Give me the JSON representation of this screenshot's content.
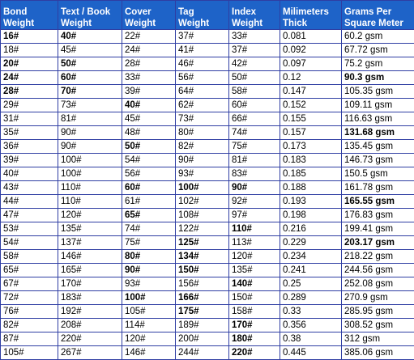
{
  "table": {
    "headers": [
      [
        "Bond",
        "Weight"
      ],
      [
        "Text / Book",
        "Weight"
      ],
      [
        "Cover",
        "Weight"
      ],
      [
        "Tag",
        "Weight"
      ],
      [
        "Index",
        "Weight"
      ],
      [
        "Milimeters",
        "Thick"
      ],
      [
        "Grams Per",
        "Square Meter"
      ]
    ],
    "rows": [
      {
        "cells": [
          "16#",
          "40#",
          "22#",
          "37#",
          "33#",
          "0.081",
          "60.2 gsm"
        ],
        "bold": [
          0,
          1
        ]
      },
      {
        "cells": [
          "18#",
          "45#",
          "24#",
          "41#",
          "37#",
          "0.092",
          "67.72 gsm"
        ],
        "bold": []
      },
      {
        "cells": [
          "20#",
          "50#",
          "28#",
          "46#",
          "42#",
          "0.097",
          "75.2 gsm"
        ],
        "bold": [
          0,
          1
        ]
      },
      {
        "cells": [
          "24#",
          "60#",
          "33#",
          "56#",
          "50#",
          "0.12",
          "90.3 gsm"
        ],
        "bold": [
          0,
          1,
          6
        ]
      },
      {
        "cells": [
          "28#",
          "70#",
          "39#",
          "64#",
          "58#",
          "0.147",
          "105.35 gsm"
        ],
        "bold": [
          0,
          1
        ]
      },
      {
        "cells": [
          "29#",
          "73#",
          "40#",
          "62#",
          "60#",
          "0.152",
          "109.11 gsm"
        ],
        "bold": [
          2
        ]
      },
      {
        "cells": [
          "31#",
          "81#",
          "45#",
          "73#",
          "66#",
          "0.155",
          "116.63 gsm"
        ],
        "bold": []
      },
      {
        "cells": [
          "35#",
          "90#",
          "48#",
          "80#",
          "74#",
          "0.157",
          "131.68 gsm"
        ],
        "bold": [
          6
        ]
      },
      {
        "cells": [
          "36#",
          "90#",
          "50#",
          "82#",
          "75#",
          "0.173",
          "135.45 gsm"
        ],
        "bold": [
          2
        ]
      },
      {
        "cells": [
          "39#",
          "100#",
          "54#",
          "90#",
          "81#",
          "0.183",
          "146.73 gsm"
        ],
        "bold": []
      },
      {
        "cells": [
          "40#",
          "100#",
          "56#",
          "93#",
          "83#",
          "0.185",
          "150.5 gsm"
        ],
        "bold": []
      },
      {
        "cells": [
          "43#",
          "110#",
          "60#",
          "100#",
          "90#",
          "0.188",
          "161.78 gsm"
        ],
        "bold": [
          2,
          3,
          4
        ]
      },
      {
        "cells": [
          "44#",
          "110#",
          "61#",
          "102#",
          "92#",
          "0.193",
          "165.55 gsm"
        ],
        "bold": [
          6
        ]
      },
      {
        "cells": [
          "47#",
          "120#",
          "65#",
          "108#",
          "97#",
          "0.198",
          "176.83 gsm"
        ],
        "bold": [
          2
        ]
      },
      {
        "cells": [
          "53#",
          "135#",
          "74#",
          "122#",
          "110#",
          "0.216",
          "199.41 gsm"
        ],
        "bold": [
          4
        ]
      },
      {
        "cells": [
          "54#",
          "137#",
          "75#",
          "125#",
          "113#",
          "0.229",
          "203.17 gsm"
        ],
        "bold": [
          3,
          6
        ]
      },
      {
        "cells": [
          "58#",
          "146#",
          "80#",
          "134#",
          "120#",
          "0.234",
          "218.22 gsm"
        ],
        "bold": [
          2,
          3
        ]
      },
      {
        "cells": [
          "65#",
          "165#",
          "90#",
          "150#",
          "135#",
          "0.241",
          "244.56 gsm"
        ],
        "bold": [
          2,
          3
        ]
      },
      {
        "cells": [
          "67#",
          "170#",
          "93#",
          "156#",
          "140#",
          "0.25",
          "252.08 gsm"
        ],
        "bold": [
          4
        ]
      },
      {
        "cells": [
          "72#",
          "183#",
          "100#",
          "166#",
          "150#",
          "0.289",
          "270.9 gsm"
        ],
        "bold": [
          2,
          3
        ]
      },
      {
        "cells": [
          "76#",
          "192#",
          "105#",
          "175#",
          "158#",
          "0.33",
          "285.95 gsm"
        ],
        "bold": [
          3
        ]
      },
      {
        "cells": [
          "82#",
          "208#",
          "114#",
          "189#",
          "170#",
          "0.356",
          "308.52 gsm"
        ],
        "bold": [
          4
        ]
      },
      {
        "cells": [
          "87#",
          "220#",
          "120#",
          "200#",
          "180#",
          "0.38",
          "312 gsm"
        ],
        "bold": [
          4
        ]
      },
      {
        "cells": [
          "105#",
          "267#",
          "146#",
          "244#",
          "220#",
          "0.445",
          "385.06 gsm"
        ],
        "bold": [
          4
        ]
      }
    ]
  },
  "colors": {
    "header_bg": "#1e63c8",
    "header_text": "#ffffff",
    "border": "#2f3ea3",
    "cell_bg": "#ffffff"
  }
}
